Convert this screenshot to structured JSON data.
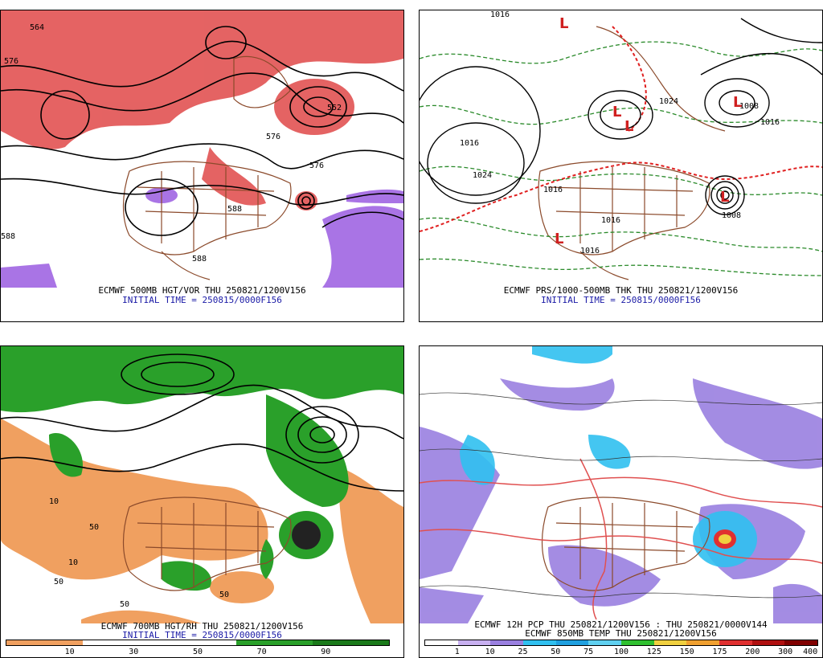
{
  "panels": [
    {
      "caption": "ECMWF 500MB HGT/VOR THU 250821/1200V156",
      "init": "INITIAL TIME = 250815/0000F156",
      "labels": [
        "564",
        "576",
        "576",
        "552",
        "588",
        "576",
        "588",
        "588"
      ]
    },
    {
      "caption": "ECMWF PRS/1000-500MB THK THU 250821/1200V156",
      "init": "INITIAL TIME = 250815/0000F156",
      "labels": [
        "1016",
        "1024",
        "1016",
        "1024",
        "1008",
        "1016",
        "1016",
        "1016",
        "1016",
        "1008"
      ]
    },
    {
      "caption": "ECMWF 700MB HGT/RH THU 250821/1200V156",
      "init": "INITIAL TIME = 250815/0000F156",
      "labels": [
        "10",
        "50",
        "10",
        "50",
        "50",
        "50"
      ],
      "scale": [
        "10",
        "30",
        "50",
        "70",
        "90"
      ]
    },
    {
      "caption": "ECMWF 12H PCP THU 250821/1200V156 : THU 250821/0000V144",
      "init": "ECMWF 850MB TEMP THU 250821/1200V156",
      "scale": [
        "1",
        "10",
        "25",
        "50",
        "75",
        "100",
        "125",
        "150",
        "175",
        "200",
        "300",
        "400"
      ]
    }
  ],
  "colors": {
    "vorticity": "#e03c3c",
    "negative_vort": "#9a5ce0",
    "land_border": "#8b4a2b",
    "rh_dry": "#f0a060",
    "rh_moist": "#2aa02a",
    "pcp_light": "#9a80e0",
    "pcp_blue": "#30c0f0"
  }
}
